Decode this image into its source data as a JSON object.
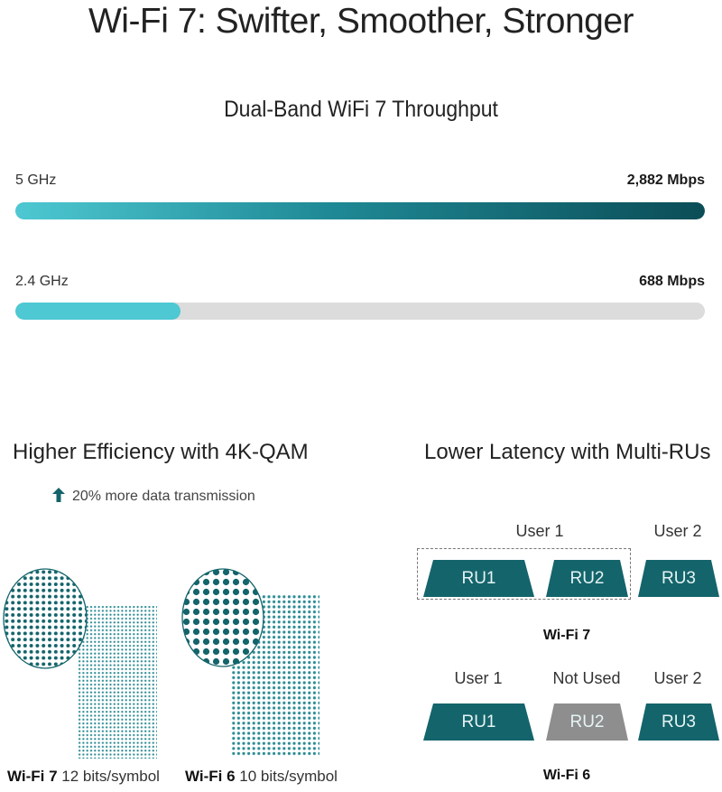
{
  "title": "Wi-Fi 7: Swifter, Smoother, Stronger",
  "throughput": {
    "heading": "Dual-Band WiFi 7 Throughput",
    "bands": [
      {
        "label": "5 GHz",
        "value": "2,882 Mbps",
        "fill_fraction": 1.0
      },
      {
        "label": "2.4 GHz",
        "value": "688 Mbps",
        "fill_fraction": 0.239
      }
    ]
  },
  "efficiency": {
    "heading": "Higher Efficiency with 4K-QAM",
    "note": "20% more data transmission",
    "diagrams": [
      {
        "name": "Wi-Fi 7",
        "rest": " 12 bits/symbol"
      },
      {
        "name": "Wi-Fi 6",
        "rest": " 10 bits/symbol"
      }
    ]
  },
  "latency": {
    "heading": "Lower Latency with Multi-RUs",
    "wifi7": {
      "caption": "Wi-Fi 7",
      "users": [
        "User 1",
        "User 2"
      ],
      "rus": [
        "RU1",
        "RU2",
        "RU3"
      ]
    },
    "wifi6": {
      "caption": "Wi-Fi 6",
      "users": [
        "User 1",
        "Not Used",
        "User 2"
      ],
      "rus": [
        "RU1",
        "RU2",
        "RU3"
      ]
    }
  },
  "colors": {
    "teal_dark": "#14646b",
    "teal_light": "#4ec8d2",
    "gray_unused": "#8e8e8e",
    "track": "#dcdcdc"
  }
}
